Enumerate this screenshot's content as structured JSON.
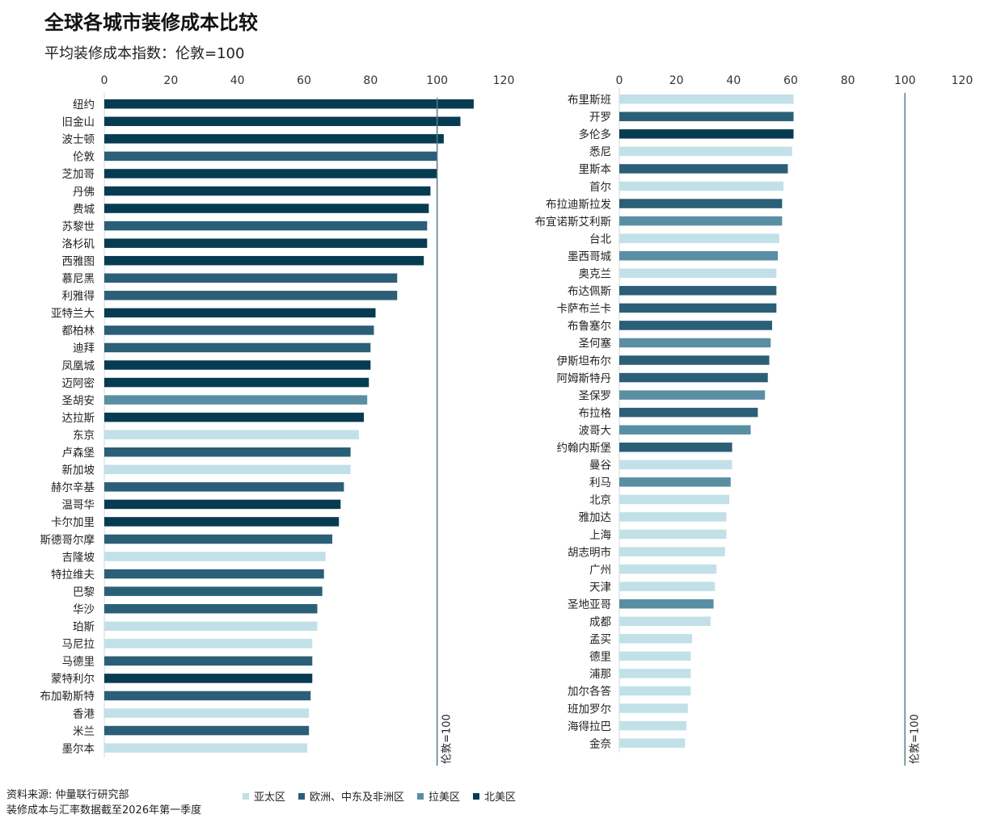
{
  "title": "全球各城市装修成本比较",
  "subtitle": "平均装修成本指数：伦敦=100",
  "colors": {
    "asia": "#c2e0e8",
    "emea": "#2b5f77",
    "latam": "#5a8fa3",
    "na": "#063c51"
  },
  "legend": [
    {
      "key": "asia",
      "label": "亚太区"
    },
    {
      "key": "emea",
      "label": "欧洲、中东及非洲区"
    },
    {
      "key": "latam",
      "label": "拉美区"
    },
    {
      "key": "na",
      "label": "北美区"
    }
  ],
  "footer": {
    "source": "资料来源: 仲量联行研究部",
    "note": "装修成本与汇率数据截至2026年第一季度"
  },
  "chart_data": [
    {
      "type": "bar",
      "orientation": "horizontal",
      "xlim": [
        0,
        120
      ],
      "xticks": [
        "0",
        "20",
        "40",
        "60",
        "80",
        "100",
        "120"
      ],
      "reference_line": {
        "value": 100,
        "label": "伦敦=100"
      },
      "categories": [
        "纽约",
        "旧金山",
        "波士顿",
        "伦敦",
        "芝加哥",
        "丹佛",
        "费城",
        "苏黎世",
        "洛杉矶",
        "西雅图",
        "慕尼黑",
        "利雅得",
        "亚特兰大",
        "都柏林",
        "迪拜",
        "凤凰城",
        "迈阿密",
        "圣胡安",
        "达拉斯",
        "东京",
        "卢森堡",
        "新加坡",
        "赫尔辛基",
        "温哥华",
        "卡尔加里",
        "斯德哥尔摩",
        "吉隆坡",
        "特拉维夫",
        "巴黎",
        "华沙",
        "珀斯",
        "马尼拉",
        "马德里",
        "蒙特利尔",
        "布加勒斯特",
        "香港",
        "米兰",
        "墨尔本"
      ],
      "values": [
        111,
        107,
        102,
        100,
        100,
        98,
        97.5,
        97,
        97,
        96,
        88,
        88,
        81.5,
        81,
        80,
        80,
        79.5,
        79,
        78,
        76.5,
        74,
        74,
        72,
        71,
        70.5,
        68.5,
        66.5,
        66,
        65.5,
        64,
        64,
        62.5,
        62.5,
        62.5,
        62,
        61.5,
        61.5,
        61
      ],
      "regions": [
        "na",
        "na",
        "na",
        "emea",
        "na",
        "na",
        "na",
        "emea",
        "na",
        "na",
        "emea",
        "emea",
        "na",
        "emea",
        "emea",
        "na",
        "na",
        "latam",
        "na",
        "asia",
        "emea",
        "asia",
        "emea",
        "na",
        "na",
        "emea",
        "asia",
        "emea",
        "emea",
        "emea",
        "asia",
        "asia",
        "emea",
        "na",
        "emea",
        "asia",
        "emea",
        "asia"
      ]
    },
    {
      "type": "bar",
      "orientation": "horizontal",
      "xlim": [
        0,
        120
      ],
      "xticks": [
        "0",
        "20",
        "40",
        "60",
        "80",
        "100",
        "120"
      ],
      "reference_line": {
        "value": 100,
        "label": "伦敦=100"
      },
      "categories": [
        "布里斯班",
        "开罗",
        "多伦多",
        "悉尼",
        "里斯本",
        "首尔",
        "布拉迪斯拉发",
        "布宜诺斯艾利斯",
        "台北",
        "墨西哥城",
        "奥克兰",
        "布达佩斯",
        "卡萨布兰卡",
        "布鲁塞尔",
        "圣何塞",
        "伊斯坦布尔",
        "阿姆斯特丹",
        "圣保罗",
        "布拉格",
        "波哥大",
        "约翰内斯堡",
        "曼谷",
        "利马",
        "北京",
        "雅加达",
        "上海",
        "胡志明市",
        "广州",
        "天津",
        "圣地亚哥",
        "成都",
        "孟买",
        "德里",
        "浦那",
        "加尔各答",
        "班加罗尔",
        "海得拉巴",
        "金奈"
      ],
      "values": [
        61,
        61,
        61,
        60.5,
        59,
        57.5,
        57,
        57,
        56,
        55.5,
        55,
        55,
        55,
        53.5,
        53,
        52.5,
        52,
        51,
        48.5,
        46,
        39.5,
        39.5,
        39,
        38.5,
        37.5,
        37.5,
        37,
        34,
        33.5,
        33,
        32,
        25.5,
        25,
        25,
        25,
        24,
        23.5,
        23
      ],
      "regions": [
        "asia",
        "emea",
        "na",
        "asia",
        "emea",
        "asia",
        "emea",
        "latam",
        "asia",
        "latam",
        "asia",
        "emea",
        "emea",
        "emea",
        "latam",
        "emea",
        "emea",
        "latam",
        "emea",
        "latam",
        "emea",
        "asia",
        "latam",
        "asia",
        "asia",
        "asia",
        "asia",
        "asia",
        "asia",
        "latam",
        "asia",
        "asia",
        "asia",
        "asia",
        "asia",
        "asia",
        "asia",
        "asia"
      ]
    }
  ]
}
